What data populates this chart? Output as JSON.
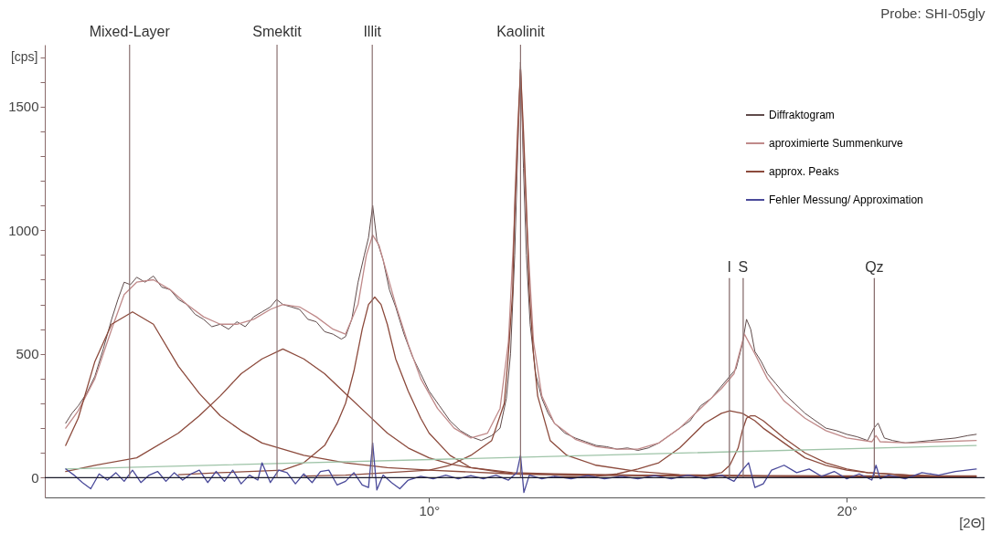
{
  "chart_data": {
    "type": "line",
    "title": "Probe: SHI-05gly",
    "xlabel": "[2Θ]",
    "ylabel": "[cps]",
    "xlim": [
      0.8,
      23.3
    ],
    "ylim": [
      -80,
      1750
    ],
    "xticks": [
      {
        "value": 10,
        "label": "10°"
      },
      {
        "value": 20,
        "label": "20°"
      }
    ],
    "yticks": [
      0,
      {
        "value": 100,
        "label": null
      },
      {
        "value": 200,
        "label": null
      },
      {
        "value": 300,
        "label": null
      },
      {
        "value": 400,
        "label": null
      },
      500,
      {
        "value": 600,
        "label": null
      },
      {
        "value": 700,
        "label": null
      },
      {
        "value": 800,
        "label": null
      },
      {
        "value": 900,
        "label": null
      },
      1000,
      {
        "value": 1100,
        "label": null
      },
      {
        "value": 1200,
        "label": null
      },
      {
        "value": 1300,
        "label": null
      },
      {
        "value": 1400,
        "label": null
      },
      1500,
      {
        "value": 1600,
        "label": null
      },
      {
        "value": 1700,
        "label": null
      }
    ],
    "grid": false,
    "legend": "top right",
    "line_style": "solid",
    "marker": "none",
    "series": [
      {
        "name": "Diffraktogram",
        "color": "#5f4b4b",
        "x": [
          1.3,
          1.45,
          1.6,
          1.8,
          2.0,
          2.2,
          2.4,
          2.55,
          2.7,
          2.85,
          3.0,
          3.2,
          3.4,
          3.6,
          3.8,
          4.0,
          4.2,
          4.4,
          4.6,
          4.8,
          5.0,
          5.2,
          5.4,
          5.6,
          5.8,
          6.0,
          6.2,
          6.35,
          6.5,
          6.7,
          6.9,
          7.1,
          7.3,
          7.5,
          7.7,
          7.9,
          8.0,
          8.15,
          8.3,
          8.45,
          8.55,
          8.65,
          8.75,
          8.9,
          9.05,
          9.2,
          9.4,
          9.6,
          9.8,
          10.0,
          10.25,
          10.5,
          10.75,
          11.0,
          11.25,
          11.5,
          11.7,
          11.85,
          11.95,
          12.05,
          12.12,
          12.19,
          12.26,
          12.33,
          12.42,
          12.55,
          12.7,
          12.85,
          13.0,
          13.25,
          13.5,
          13.75,
          14.0,
          14.25,
          14.5,
          14.75,
          15.0,
          15.25,
          15.5,
          15.75,
          16.0,
          16.25,
          16.5,
          16.75,
          17.0,
          17.2,
          17.35,
          17.5,
          17.6,
          17.7,
          17.8,
          17.95,
          18.1,
          18.3,
          18.5,
          18.75,
          19.0,
          19.25,
          19.5,
          19.75,
          20.0,
          20.25,
          20.5,
          20.65,
          20.75,
          20.9,
          21.1,
          21.4,
          21.7,
          22.0,
          22.3,
          22.6,
          22.9,
          23.1
        ],
        "values": [
          220,
          260,
          290,
          340,
          410,
          520,
          640,
          720,
          790,
          780,
          810,
          790,
          815,
          770,
          760,
          720,
          700,
          660,
          640,
          610,
          620,
          600,
          630,
          610,
          650,
          670,
          690,
          720,
          700,
          690,
          680,
          640,
          630,
          590,
          580,
          560,
          570,
          640,
          790,
          900,
          970,
          1100,
          960,
          880,
          760,
          690,
          580,
          490,
          420,
          350,
          290,
          230,
          190,
          165,
          150,
          170,
          200,
          320,
          500,
          900,
          1300,
          1680,
          1250,
          900,
          620,
          420,
          320,
          260,
          220,
          180,
          160,
          145,
          130,
          125,
          115,
          120,
          110,
          120,
          140,
          170,
          200,
          230,
          290,
          320,
          370,
          410,
          440,
          540,
          640,
          600,
          510,
          470,
          420,
          380,
          340,
          300,
          260,
          230,
          200,
          190,
          175,
          165,
          150,
          200,
          220,
          160,
          150,
          140,
          145,
          150,
          155,
          160,
          170,
          175
        ]
      },
      {
        "name": "aproximierte Summenkurve",
        "color": "#c08a8a",
        "x": [
          1.3,
          1.6,
          2.0,
          2.4,
          2.7,
          3.0,
          3.4,
          3.8,
          4.2,
          4.6,
          5.0,
          5.4,
          5.8,
          6.2,
          6.5,
          6.9,
          7.3,
          7.7,
          8.0,
          8.3,
          8.5,
          8.65,
          8.8,
          9.0,
          9.2,
          9.5,
          9.8,
          10.2,
          10.6,
          11.0,
          11.4,
          11.7,
          11.9,
          12.05,
          12.19,
          12.33,
          12.5,
          12.7,
          13.0,
          13.5,
          14.0,
          14.5,
          15.0,
          15.5,
          16.0,
          16.5,
          17.0,
          17.3,
          17.55,
          17.8,
          18.1,
          18.5,
          19.0,
          19.5,
          20.0,
          20.6,
          20.7,
          20.8,
          21.5,
          22.2,
          23.1
        ],
        "values": [
          200,
          270,
          400,
          600,
          740,
          790,
          800,
          760,
          700,
          650,
          620,
          620,
          640,
          680,
          700,
          690,
          650,
          600,
          580,
          700,
          900,
          980,
          940,
          820,
          700,
          540,
          400,
          280,
          200,
          160,
          180,
          280,
          550,
          1050,
          1650,
          1050,
          550,
          330,
          220,
          155,
          125,
          115,
          115,
          140,
          200,
          280,
          360,
          420,
          580,
          500,
          400,
          310,
          240,
          190,
          160,
          145,
          170,
          145,
          140,
          145,
          150
        ]
      },
      {
        "name": "approx. Peaks",
        "color": "#8c4a3c",
        "x": [
          1.3,
          1.6,
          2.0,
          2.4,
          2.9,
          3.4,
          4.0,
          4.5,
          5.0,
          5.5,
          6.0,
          7.0,
          8.0,
          9.0,
          10.0,
          12.0,
          14.0,
          16.0,
          18.0,
          20.0,
          22.0,
          23.1
        ],
        "values": [
          130,
          240,
          470,
          620,
          670,
          620,
          450,
          340,
          250,
          190,
          140,
          90,
          60,
          40,
          30,
          15,
          10,
          8,
          7,
          7,
          7,
          7
        ]
      },
      {
        "name": null,
        "color": "#8c4a3c",
        "x": [
          1.3,
          2.0,
          3.0,
          4.0,
          4.5,
          5.0,
          5.5,
          6.0,
          6.5,
          7.0,
          7.5,
          8.0,
          8.5,
          9.0,
          9.5,
          10.0,
          10.5,
          11.0,
          12.0,
          13.0,
          15.0,
          17.0,
          20.0,
          23.1
        ],
        "values": [
          25,
          50,
          80,
          180,
          250,
          330,
          420,
          480,
          520,
          480,
          420,
          340,
          260,
          180,
          120,
          80,
          55,
          40,
          20,
          15,
          10,
          8,
          6,
          4
        ]
      },
      {
        "name": null,
        "color": "#8c4a3c",
        "x": [
          4.0,
          5.0,
          6.5,
          7.0,
          7.5,
          7.8,
          8.0,
          8.2,
          8.4,
          8.55,
          8.7,
          8.85,
          9.0,
          9.2,
          9.5,
          9.8,
          10.0,
          10.5,
          11.0,
          12.0,
          14.0,
          17.0,
          20.0,
          22.8
        ],
        "values": [
          12,
          20,
          30,
          60,
          130,
          220,
          300,
          430,
          600,
          700,
          730,
          700,
          620,
          480,
          350,
          240,
          180,
          90,
          40,
          15,
          10,
          6,
          4,
          3
        ]
      },
      {
        "name": null,
        "color": "#8c4a3c",
        "x": [
          7.0,
          8.0,
          10.0,
          10.5,
          11.0,
          11.5,
          11.8,
          11.9,
          12.0,
          12.05,
          12.12,
          12.19,
          12.26,
          12.33,
          12.4,
          12.5,
          12.6,
          12.9,
          13.3,
          14.0,
          15.0,
          16.0,
          18.0,
          20.0,
          22.5
        ],
        "values": [
          6,
          10,
          30,
          50,
          90,
          150,
          300,
          500,
          750,
          1100,
          1400,
          1650,
          1400,
          1100,
          750,
          500,
          330,
          150,
          90,
          50,
          25,
          12,
          6,
          3,
          2
        ]
      },
      {
        "name": null,
        "color": "#8c4a3c",
        "x": [
          13.0,
          14.0,
          14.5,
          15.0,
          15.5,
          16.0,
          16.3,
          16.6,
          17.0,
          17.2,
          17.5,
          17.8,
          18.0,
          18.5,
          19.0,
          19.5,
          20.0,
          20.5,
          21.5,
          23.0
        ],
        "values": [
          3,
          5,
          15,
          35,
          60,
          120,
          170,
          220,
          260,
          270,
          260,
          230,
          200,
          140,
          80,
          50,
          30,
          20,
          10,
          1
        ]
      },
      {
        "name": null,
        "color": "#8c4a3c",
        "x": [
          16.5,
          17.0,
          17.2,
          17.4,
          17.5,
          17.6,
          17.7,
          17.8,
          18.0,
          18.5,
          19.0,
          19.5,
          20.0,
          20.5,
          21.5,
          22.9
        ],
        "values": [
          5,
          20,
          50,
          120,
          190,
          240,
          250,
          250,
          230,
          160,
          100,
          60,
          35,
          20,
          10,
          2
        ]
      },
      {
        "name": null,
        "color": "#9fc4a8",
        "x": [
          1.3,
          23.1
        ],
        "values": [
          35,
          130
        ]
      },
      {
        "name": null,
        "color": "#8a7070",
        "x": [
          17.19,
          17.19
        ],
        "values": [
          0,
          805
        ]
      },
      {
        "name": null,
        "color": "#8a7070",
        "x": [
          17.52,
          17.52
        ],
        "values": [
          0,
          805
        ]
      },
      {
        "name": null,
        "color": "#8a7070",
        "x": [
          20.66,
          20.66
        ],
        "values": [
          0,
          805
        ]
      },
      {
        "name": "Fehler Messung/ Approximation",
        "color": "#4a4a9a",
        "x": [
          1.3,
          1.5,
          1.7,
          1.9,
          2.1,
          2.3,
          2.5,
          2.7,
          2.9,
          3.1,
          3.3,
          3.5,
          3.7,
          3.9,
          4.1,
          4.3,
          4.5,
          4.7,
          4.9,
          5.1,
          5.3,
          5.5,
          5.7,
          5.9,
          6.0,
          6.2,
          6.4,
          6.6,
          6.8,
          7.0,
          7.2,
          7.4,
          7.6,
          7.8,
          8.0,
          8.2,
          8.4,
          8.55,
          8.65,
          8.75,
          8.9,
          9.1,
          9.3,
          9.5,
          9.8,
          10.1,
          10.4,
          10.7,
          11.0,
          11.3,
          11.6,
          11.9,
          12.1,
          12.19,
          12.27,
          12.4,
          12.7,
          13.0,
          13.4,
          13.8,
          14.2,
          14.6,
          15.0,
          15.4,
          15.8,
          16.2,
          16.6,
          17.0,
          17.3,
          17.5,
          17.65,
          17.8,
          18.0,
          18.2,
          18.5,
          18.8,
          19.1,
          19.4,
          19.7,
          20.0,
          20.3,
          20.6,
          20.7,
          20.8,
          21.0,
          21.4,
          21.8,
          22.2,
          22.6,
          23.1
        ],
        "values": [
          35,
          10,
          -20,
          -45,
          15,
          -10,
          20,
          -15,
          30,
          -20,
          10,
          25,
          -15,
          20,
          -10,
          15,
          30,
          -20,
          25,
          -15,
          30,
          -25,
          10,
          -10,
          60,
          -20,
          30,
          20,
          -25,
          15,
          -20,
          25,
          30,
          -30,
          -15,
          20,
          -30,
          -40,
          140,
          -50,
          10,
          -20,
          -45,
          -10,
          5,
          -5,
          10,
          -5,
          8,
          -5,
          10,
          -10,
          20,
          90,
          -60,
          10,
          -5,
          5,
          -5,
          8,
          -5,
          5,
          -5,
          8,
          -5,
          10,
          -5,
          10,
          -15,
          30,
          60,
          -40,
          -25,
          30,
          50,
          20,
          35,
          5,
          25,
          -5,
          15,
          -10,
          50,
          -5,
          10,
          -5,
          20,
          10,
          25,
          35
        ]
      }
    ],
    "ref_lines": [
      {
        "axis": "y",
        "value": 0,
        "color": "#1a1a2a"
      },
      {
        "axis": "x",
        "value": 2.83,
        "label": "Mixed-Layer",
        "color": "#8a7070"
      },
      {
        "axis": "x",
        "value": 6.36,
        "label": "Smektit",
        "color": "#8a7070"
      },
      {
        "axis": "x",
        "value": 8.64,
        "label": "Illit",
        "color": "#8a7070"
      },
      {
        "axis": "x",
        "value": 12.19,
        "label": "Kaolinit",
        "color": "#8a7070"
      }
    ],
    "annotations": [
      {
        "text": "I",
        "x": 17.19,
        "y": 805
      },
      {
        "text": "S",
        "x": 17.52,
        "y": 805
      },
      {
        "text": "Qz",
        "x": 20.66,
        "y": 805
      }
    ]
  }
}
